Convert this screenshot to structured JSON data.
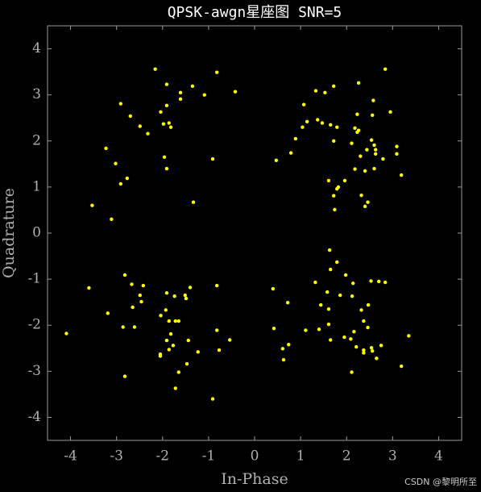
{
  "chart_data": {
    "type": "scatter",
    "title": "QPSK-awgn星座图 SNR=5",
    "x_label": "In-Phase",
    "y_label": "Quadrature",
    "annotation": "CSDN @黎明所至",
    "color": "#ffff00",
    "xlim": [
      -4.5,
      4.5
    ],
    "ylim": [
      -4.5,
      4.5
    ],
    "xticks": [
      -4,
      -3,
      -2,
      -1,
      0,
      1,
      2,
      3,
      4
    ],
    "yticks": [
      -4,
      -3,
      -2,
      -1,
      0,
      1,
      2,
      3,
      4
    ],
    "series": [
      {
        "name": "",
        "color": "#ffff00",
        "x": [
          -2.16,
          -0.82,
          -1.91,
          -1.35,
          -0.42,
          -1.61,
          -1.09,
          -1.61,
          -2.91,
          -1.91,
          -2.7,
          -2.04,
          -1.98,
          -1.86,
          -1.82,
          -2.49,
          -2.32,
          -3.23,
          -1.96,
          -0.91,
          -3.02,
          -1.91,
          -2.77,
          -2.91,
          -1.33,
          -3.53,
          -3.11,
          2.84,
          2.26,
          1.72,
          1.33,
          1.53,
          2.58,
          1.07,
          2.95,
          2.23,
          2.56,
          1.37,
          1.14,
          1.47,
          1.65,
          1.04,
          1.79,
          2.18,
          2.26,
          2.23,
          0.89,
          1.72,
          2.54,
          2.11,
          2.6,
          3.09,
          2.44,
          2.63,
          2.63,
          3.09,
          0.79,
          2.3,
          2.79,
          0.47,
          2.18,
          2.4,
          2.6,
          3.19,
          1.61,
          1.96,
          1.79,
          1.82,
          1.72,
          2.32,
          2.46,
          2.4,
          1.74,
          -2.82,
          -2.42,
          -2.67,
          -1.4,
          -0.82,
          -3.6,
          -2.49,
          -1.91,
          -1.74,
          -1.51,
          -1.49,
          -2.46,
          -2.65,
          -1.93,
          -3.19,
          -2.04,
          -1.72,
          -1.86,
          -1.65,
          -2.86,
          -2.61,
          -0.82,
          -1.82,
          -4.09,
          -0.54,
          -1.91,
          -1.44,
          -1.77,
          -1.23,
          -0.77,
          -1.86,
          -2.05,
          -2.05,
          -1.47,
          -1.65,
          -2.82,
          -1.72,
          -0.91,
          1.63,
          1.79,
          1.65,
          1.98,
          2.53,
          2.7,
          2.84,
          1.32,
          2.14,
          0.4,
          1.58,
          1.86,
          2.12,
          0.72,
          1.44,
          2.47,
          1.61,
          2.32,
          2.37,
          1.61,
          0.42,
          1.11,
          1.4,
          2.16,
          2.46,
          1.95,
          1.65,
          3.35,
          0.74,
          2.09,
          2.21,
          2.37,
          2.37,
          2.54,
          2.75,
          2.56,
          0.61,
          2.65,
          0.63,
          3.19,
          2.11
        ],
        "values": [
          3.56,
          3.49,
          3.23,
          3.19,
          3.07,
          3.05,
          3.0,
          2.91,
          2.81,
          2.77,
          2.54,
          2.63,
          2.37,
          2.39,
          2.3,
          2.32,
          2.16,
          1.84,
          1.65,
          1.61,
          1.51,
          1.4,
          1.19,
          1.07,
          0.67,
          0.6,
          0.3,
          3.56,
          3.26,
          3.19,
          3.09,
          3.05,
          2.88,
          2.79,
          2.63,
          2.58,
          2.56,
          2.46,
          2.42,
          2.39,
          2.35,
          2.3,
          2.3,
          2.28,
          2.23,
          2.19,
          2.05,
          2.0,
          2.02,
          1.95,
          1.91,
          1.88,
          1.81,
          1.81,
          1.72,
          1.72,
          1.74,
          1.67,
          1.61,
          1.58,
          1.39,
          1.35,
          1.4,
          1.26,
          1.14,
          1.14,
          0.96,
          1.0,
          0.81,
          0.82,
          0.67,
          0.58,
          0.51,
          -0.91,
          -1.14,
          -1.11,
          -1.18,
          -1.14,
          -1.19,
          -1.35,
          -1.3,
          -1.37,
          -1.35,
          -1.42,
          -1.49,
          -1.61,
          -1.67,
          -1.74,
          -1.79,
          -1.91,
          -1.91,
          -1.91,
          -2.04,
          -2.04,
          -2.11,
          -2.19,
          -2.18,
          -2.32,
          -2.33,
          -2.33,
          -2.44,
          -2.58,
          -2.54,
          -2.53,
          -2.63,
          -2.67,
          -2.84,
          -3.02,
          -3.11,
          -3.37,
          -3.6,
          -0.37,
          -0.63,
          -0.79,
          -0.91,
          -1.04,
          -1.05,
          -1.07,
          -1.07,
          -1.09,
          -1.21,
          -1.28,
          -1.35,
          -1.37,
          -1.51,
          -1.56,
          -1.56,
          -1.65,
          -1.67,
          -1.91,
          -1.98,
          -2.07,
          -2.11,
          -2.09,
          -2.14,
          -2.05,
          -2.26,
          -2.32,
          -2.23,
          -2.42,
          -2.3,
          -2.47,
          -2.54,
          -2.6,
          -2.49,
          -2.44,
          -2.56,
          -2.51,
          -2.72,
          -2.75,
          -2.89,
          -3.02
        ]
      }
    ]
  }
}
